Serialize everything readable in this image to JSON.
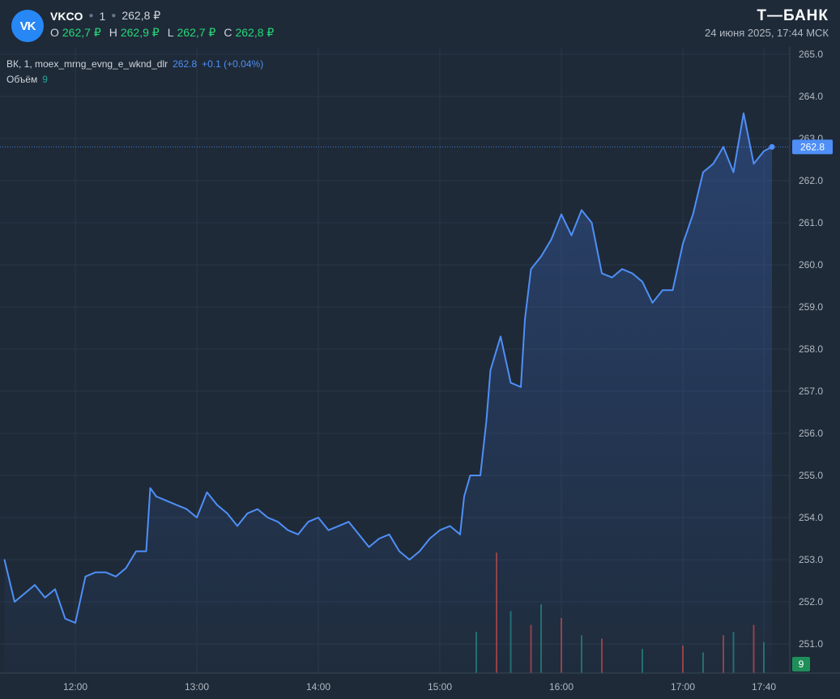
{
  "header": {
    "logo_text": "VK",
    "ticker": "VKCO",
    "interval": "1",
    "last_price": "262,8 ₽",
    "ohlc": [
      {
        "key": "O",
        "value": "262,7 ₽"
      },
      {
        "key": "H",
        "value": "262,9 ₽"
      },
      {
        "key": "L",
        "value": "262,7 ₽"
      },
      {
        "key": "C",
        "value": "262,8 ₽"
      }
    ],
    "brand": "Т—БАНК",
    "datetime": "24 июня 2025, 17:44 МСК"
  },
  "legend": {
    "series_label": "ВК, 1, moex_mrng_evng_e_wknd_dlr",
    "series_value": "262.8",
    "series_change": "+0.1 (+0.04%)",
    "volume_label": "Объём",
    "volume_value": "9"
  },
  "colors": {
    "background": "#1e2a38",
    "line": "#4f8ff7",
    "up_volume": "#26a69a",
    "down_volume": "#ef5350",
    "ohlc_value": "#26d979"
  },
  "chart_data": {
    "type": "area",
    "title": "",
    "xlabel": "",
    "ylabel": "",
    "ylim": [
      250.5,
      265.0
    ],
    "y_ticks": [
      "265.0",
      "264.0",
      "263.0",
      "262.0",
      "261.0",
      "260.0",
      "259.0",
      "258.0",
      "257.0",
      "256.0",
      "255.0",
      "254.0",
      "253.0",
      "252.0",
      "251.0"
    ],
    "x_ticks": [
      "12:00",
      "13:00",
      "14:00",
      "15:00",
      "16:00",
      "17:00",
      "17:40"
    ],
    "last_value_label": "262.8",
    "volume_last_label": "9",
    "series": [
      {
        "x": [
          "11:25",
          "11:30",
          "11:35",
          "11:40",
          "11:45",
          "11:50",
          "11:55",
          "12:00",
          "12:05",
          "12:10",
          "12:15",
          "12:20",
          "12:25",
          "12:30",
          "12:35",
          "12:37",
          "12:40",
          "12:45",
          "12:50",
          "12:55",
          "13:00",
          "13:05",
          "13:10",
          "13:15",
          "13:20",
          "13:25",
          "13:30",
          "13:35",
          "13:40",
          "13:45",
          "13:50",
          "13:55",
          "14:00",
          "14:05",
          "14:10",
          "14:15",
          "14:20",
          "14:25",
          "14:30",
          "14:35",
          "14:40",
          "14:45",
          "14:50",
          "14:55",
          "15:00",
          "15:05",
          "15:10",
          "15:12",
          "15:15",
          "15:20",
          "15:23",
          "15:25",
          "15:30",
          "15:35",
          "15:40",
          "15:42",
          "15:45",
          "15:50",
          "15:55",
          "16:00",
          "16:05",
          "16:10",
          "16:15",
          "16:20",
          "16:25",
          "16:30",
          "16:35",
          "16:40",
          "16:45",
          "16:50",
          "16:55",
          "17:00",
          "17:05",
          "17:10",
          "17:15",
          "17:20",
          "17:25",
          "17:30",
          "17:35",
          "17:40",
          "17:44"
        ],
        "values": [
          253.0,
          252.0,
          252.2,
          252.4,
          252.1,
          252.3,
          251.6,
          251.5,
          252.6,
          252.7,
          252.7,
          252.6,
          252.8,
          253.2,
          253.2,
          254.7,
          254.5,
          254.4,
          254.3,
          254.2,
          254.0,
          254.6,
          254.3,
          254.1,
          253.8,
          254.1,
          254.2,
          254.0,
          253.9,
          253.7,
          253.6,
          253.9,
          254.0,
          253.7,
          253.8,
          253.9,
          253.6,
          253.3,
          253.5,
          253.6,
          253.2,
          253.0,
          253.2,
          253.5,
          253.7,
          253.8,
          253.6,
          254.5,
          255.0,
          255.0,
          256.3,
          257.5,
          258.3,
          257.2,
          257.1,
          258.7,
          259.9,
          260.2,
          260.6,
          261.2,
          260.7,
          261.3,
          261.0,
          259.8,
          259.7,
          259.9,
          259.8,
          259.6,
          259.1,
          259.4,
          259.4,
          260.5,
          261.2,
          262.2,
          262.4,
          262.8,
          262.2,
          263.6,
          262.4,
          262.7,
          262.8
        ]
      },
      {
        "name": "Объём",
        "x": [
          "15:18",
          "15:28",
          "15:35",
          "15:45",
          "15:50",
          "16:00",
          "16:10",
          "16:20",
          "16:40",
          "17:00",
          "17:10",
          "17:20",
          "17:25",
          "17:35",
          "17:40"
        ],
        "values": [
          60,
          175,
          90,
          70,
          100,
          80,
          55,
          50,
          35,
          40,
          30,
          55,
          60,
          70,
          45
        ]
      }
    ]
  }
}
